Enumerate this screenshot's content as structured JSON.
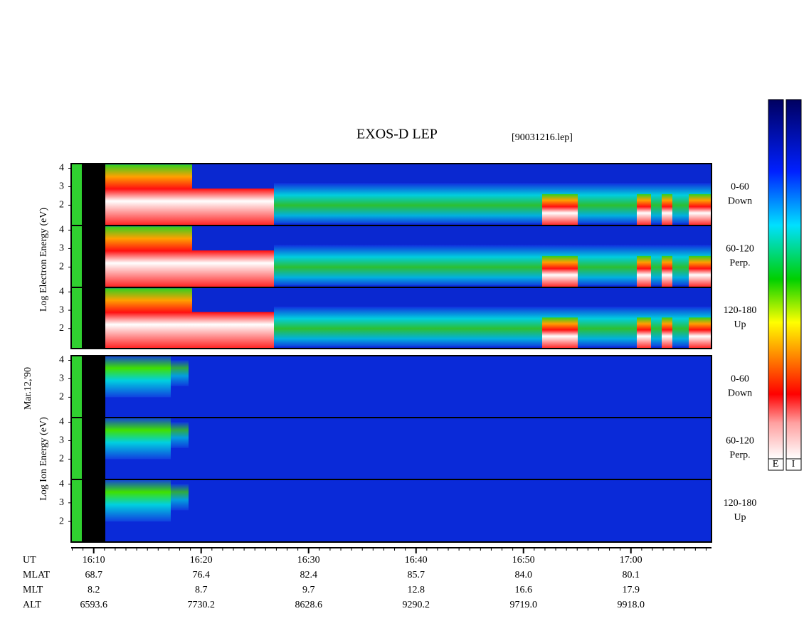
{
  "title": "EXOS-D LEP",
  "file": "[90031216.lep]",
  "electron_axis_label": "Log    Electron    Energy (eV)",
  "date": "Mar.12,'90",
  "ion_axis_label": "Log    Ion    Energy (eV)",
  "pitch_angles": [
    [
      "0-60",
      "Down"
    ],
    [
      "60-120",
      "Perp."
    ],
    [
      "120-180",
      "Up"
    ]
  ],
  "energy_axis": {
    "ylim": [
      0.9,
      4.25
    ],
    "yticks": [
      2,
      3,
      4
    ]
  },
  "time_axis": {
    "xlim": [
      967.9,
      1027.5
    ],
    "xticks": [
      {
        "value": 970,
        "label": "16:10"
      },
      {
        "value": 980,
        "label": "16:20"
      },
      {
        "value": 990,
        "label": "16:30"
      },
      {
        "value": 1000,
        "label": "16:40"
      },
      {
        "value": 1010,
        "label": "16:50"
      },
      {
        "value": 1020,
        "label": "17:00"
      }
    ]
  },
  "orbit_rows": [
    {
      "name": "UT"
    },
    {
      "name": "MLAT",
      "values": [
        "68.7",
        "76.4",
        "82.4",
        "85.7",
        "84.0",
        "80.1"
      ]
    },
    {
      "name": "MLT",
      "values": [
        "8.2",
        "8.7",
        "9.7",
        "12.8",
        "16.6",
        "17.9"
      ]
    },
    {
      "name": "ALT",
      "values": [
        "6593.6",
        "7730.2",
        "8628.6",
        "9290.2",
        "9719.0",
        "9918.0"
      ]
    }
  ],
  "colorbars": [
    "E",
    "I"
  ]
}
